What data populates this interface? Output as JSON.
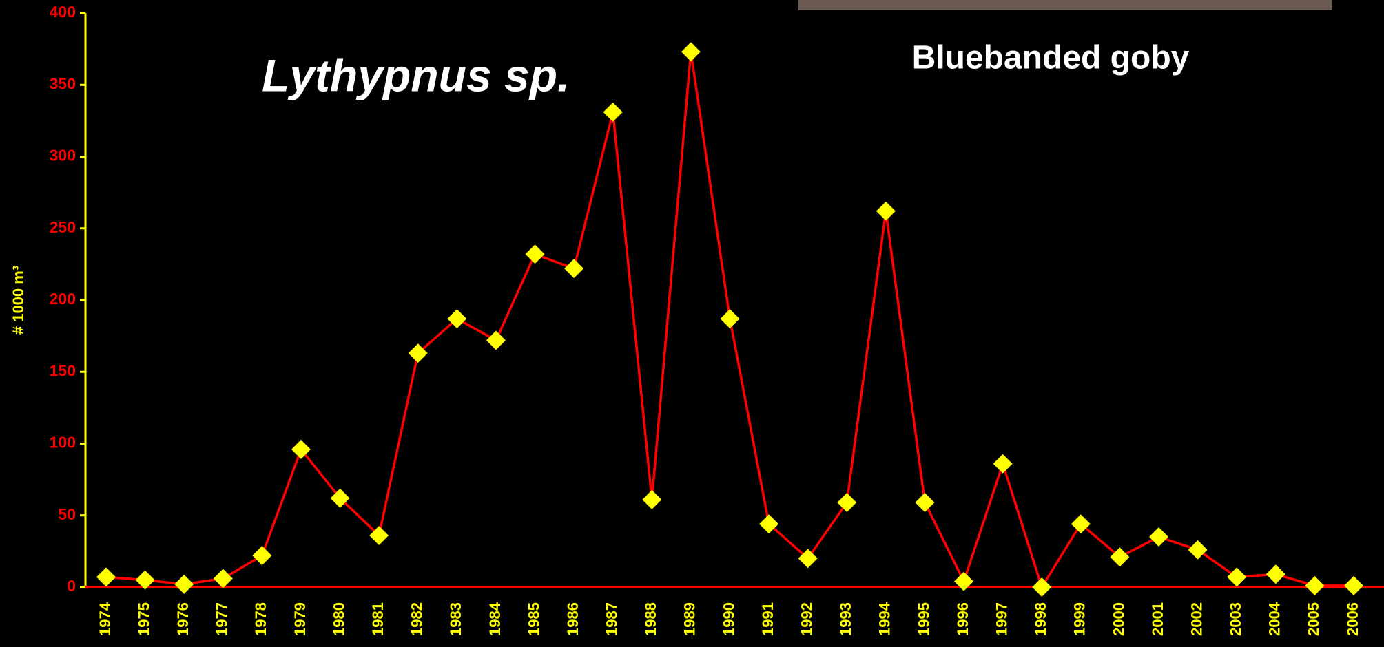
{
  "chart_data": {
    "type": "line",
    "title": "Lythypnus sp.",
    "subtitle": "Bluebanded goby",
    "y_label": "# 1000 m³",
    "categories": [
      "1974",
      "1975",
      "1976",
      "1977",
      "1978",
      "1979",
      "1980",
      "1981",
      "1982",
      "1983",
      "1984",
      "1985",
      "1986",
      "1987",
      "1988",
      "1989",
      "1990",
      "1991",
      "1992",
      "1993",
      "1994",
      "1995",
      "1996",
      "1997",
      "1998",
      "1999",
      "2000",
      "2001",
      "2002",
      "2003",
      "2004",
      "2005",
      "2006"
    ],
    "series": [
      {
        "color": "#ff0000",
        "marker_color": "#ffff00",
        "values": [
          7,
          5,
          2,
          6,
          22,
          96,
          62,
          36,
          163,
          187,
          172,
          232,
          222,
          331,
          61,
          373,
          187,
          44,
          20,
          59,
          262,
          59,
          4,
          86,
          0,
          44,
          21,
          35,
          26,
          7,
          9,
          1,
          1
        ]
      }
    ],
    "ylim": [
      0,
      400
    ],
    "yticks": [
      0,
      50,
      100,
      150,
      200,
      250,
      300,
      350,
      400
    ]
  }
}
